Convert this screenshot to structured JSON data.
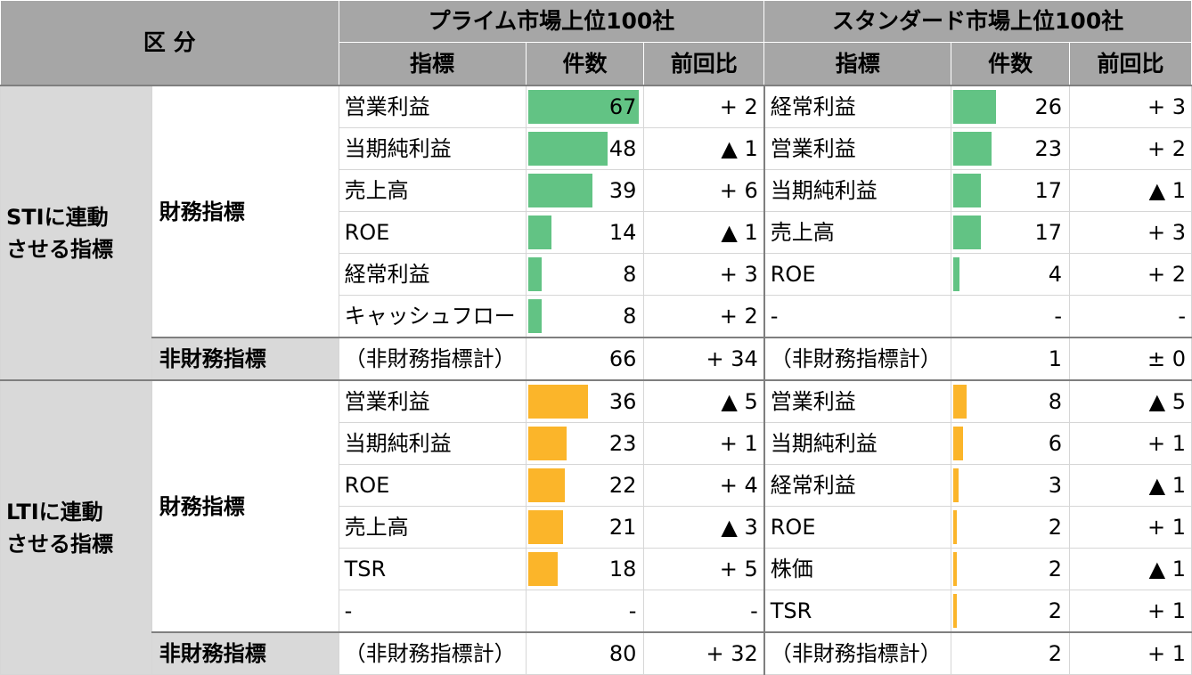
{
  "header": {
    "category": "区 分",
    "prime_title": "プライム市場上位100社",
    "standard_title": "スタンダード市場上位100社",
    "col_indicator": "指標",
    "col_count": "件数",
    "col_change": "前回比"
  },
  "colors": {
    "sti_bar": "#62c384",
    "lti_bar": "#fbb52a",
    "header_bg": "#a6a6a6",
    "group_bg": "#d9d9d9"
  },
  "sections": [
    {
      "group": "STIに連動させる指標",
      "group_line1": "STIに連動",
      "group_line2": "させる指標",
      "financial_label": "財務指標",
      "nonfinancial_label": "非財務指標",
      "rows": [
        {
          "p_ind": "営業利益",
          "p_cnt": "67",
          "p_val": 67,
          "p_chg": "+ 2",
          "s_ind": "経常利益",
          "s_cnt": "26",
          "s_val": 26,
          "s_chg": "+ 3"
        },
        {
          "p_ind": "当期純利益",
          "p_cnt": "48",
          "p_val": 48,
          "p_chg": "▲ 1",
          "s_ind": "営業利益",
          "s_cnt": "23",
          "s_val": 23,
          "s_chg": "+ 2"
        },
        {
          "p_ind": "売上高",
          "p_cnt": "39",
          "p_val": 39,
          "p_chg": "+ 6",
          "s_ind": "当期純利益",
          "s_cnt": "17",
          "s_val": 17,
          "s_chg": "▲ 1"
        },
        {
          "p_ind": "ROE",
          "p_cnt": "14",
          "p_val": 14,
          "p_chg": "▲ 1",
          "s_ind": "売上高",
          "s_cnt": "17",
          "s_val": 17,
          "s_chg": "+ 3"
        },
        {
          "p_ind": "経常利益",
          "p_cnt": "8",
          "p_val": 8,
          "p_chg": "+ 3",
          "s_ind": "ROE",
          "s_cnt": "4",
          "s_val": 4,
          "s_chg": "+ 2"
        },
        {
          "p_ind": "キャッシュフロー",
          "p_cnt": "8",
          "p_val": 8,
          "p_chg": "+ 2",
          "s_ind": "-",
          "s_cnt": "-",
          "s_val": 0,
          "s_chg": "-"
        }
      ],
      "total": {
        "p_ind": "（非財務指標計）",
        "p_cnt": "66",
        "p_chg": "+ 34",
        "s_ind": "（非財務指標計）",
        "s_cnt": "1",
        "s_chg": "± 0"
      }
    },
    {
      "group": "LTIに連動させる指標",
      "group_line1": "LTIに連動",
      "group_line2": "させる指標",
      "financial_label": "財務指標",
      "nonfinancial_label": "非財務指標",
      "rows": [
        {
          "p_ind": "営業利益",
          "p_cnt": "36",
          "p_val": 36,
          "p_chg": "▲ 5",
          "s_ind": "営業利益",
          "s_cnt": "8",
          "s_val": 8,
          "s_chg": "▲ 5"
        },
        {
          "p_ind": "当期純利益",
          "p_cnt": "23",
          "p_val": 23,
          "p_chg": "+ 1",
          "s_ind": "当期純利益",
          "s_cnt": "6",
          "s_val": 6,
          "s_chg": "+ 1"
        },
        {
          "p_ind": "ROE",
          "p_cnt": "22",
          "p_val": 22,
          "p_chg": "+ 4",
          "s_ind": "経常利益",
          "s_cnt": "3",
          "s_val": 3,
          "s_chg": "▲ 1"
        },
        {
          "p_ind": "売上高",
          "p_cnt": "21",
          "p_val": 21,
          "p_chg": "▲ 3",
          "s_ind": "ROE",
          "s_cnt": "2",
          "s_val": 2,
          "s_chg": "+ 1"
        },
        {
          "p_ind": "TSR",
          "p_cnt": "18",
          "p_val": 18,
          "p_chg": "+ 5",
          "s_ind": "株価",
          "s_cnt": "2",
          "s_val": 2,
          "s_chg": "▲ 1"
        },
        {
          "p_ind": "-",
          "p_cnt": "-",
          "p_val": 0,
          "p_chg": "-",
          "s_ind": "TSR",
          "s_cnt": "2",
          "s_val": 2,
          "s_chg": "+ 1"
        }
      ],
      "total": {
        "p_ind": "（非財務指標計）",
        "p_cnt": "80",
        "p_chg": "+ 32",
        "s_ind": "（非財務指標計）",
        "s_cnt": "2",
        "s_chg": "+ 1"
      }
    }
  ]
}
